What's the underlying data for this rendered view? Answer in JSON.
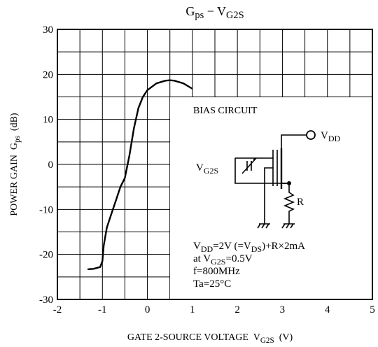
{
  "chart_data": {
    "type": "line",
    "title": [
      "G",
      "ps",
      " − V",
      "G2S"
    ],
    "xlabel": [
      "GATE 2-SOURCE VOLTAGE  V",
      "G2S",
      "  (V)"
    ],
    "ylabel": [
      "POWER GAIN  G",
      "ps",
      "  (dB)"
    ],
    "x": [
      -1.33,
      -1.2,
      -1.05,
      -1.0,
      -0.97,
      -0.9,
      -0.8,
      -0.7,
      -0.6,
      -0.5,
      -0.4,
      -0.3,
      -0.2,
      -0.1,
      0,
      0.2,
      0.4,
      0.5,
      0.6,
      0.8,
      1.0
    ],
    "values": [
      -23.3,
      -23.2,
      -22.8,
      -21.5,
      -18,
      -14,
      -11,
      -8,
      -5,
      -3,
      2,
      8,
      12.5,
      15,
      16.5,
      18,
      18.6,
      18.7,
      18.6,
      18,
      16.8
    ],
    "color": "#000000",
    "xlim": [
      -2,
      5
    ],
    "ylim": [
      -30,
      30
    ],
    "xticks": [
      -2,
      -1,
      0,
      1,
      2,
      3,
      4,
      5
    ],
    "yticks": [
      -30,
      -20,
      -10,
      0,
      10,
      20,
      30
    ],
    "grid": true,
    "annotations": {
      "bias_circuit": "BIAS CIRCUIT",
      "vdd": [
        "V",
        "DD"
      ],
      "vg2s": [
        "V",
        "G2S"
      ],
      "r": "R",
      "conditions": [
        [
          "V",
          "DD",
          "=2V (=V",
          "DS",
          ")+R×2mA"
        ],
        [
          "at V",
          "G2S",
          "=0.5V"
        ],
        [
          "f=800MHz"
        ],
        [
          "Ta=25°C"
        ]
      ]
    }
  }
}
